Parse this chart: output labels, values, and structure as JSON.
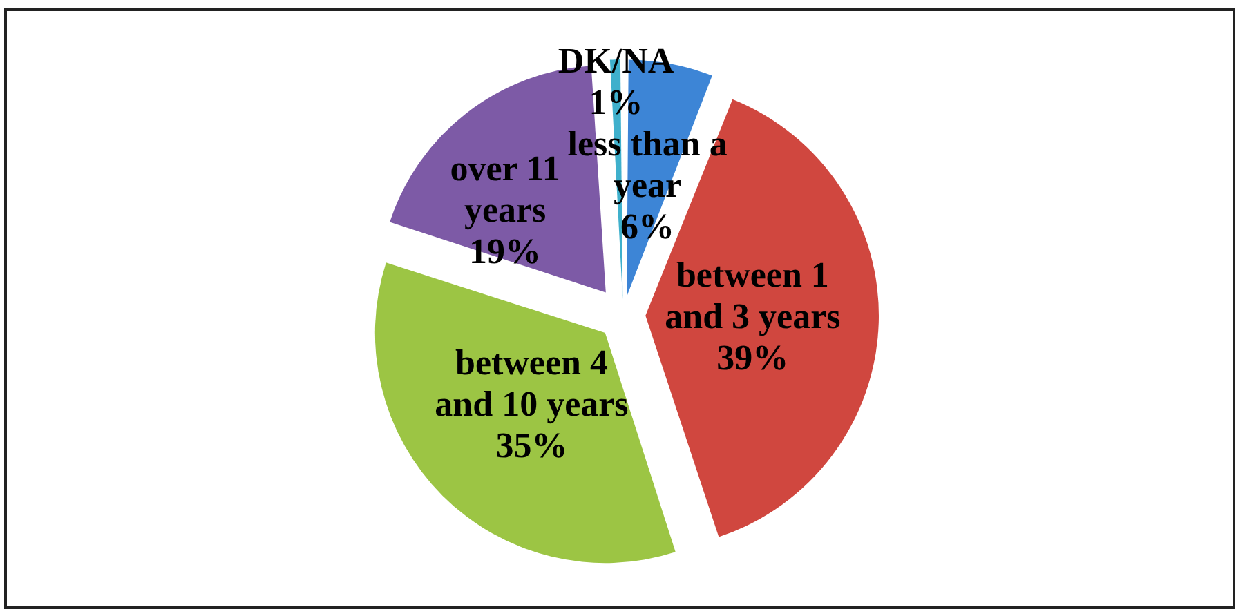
{
  "chart_data": {
    "type": "pie",
    "categories": [
      "less than a year",
      "between 1 and 3 years",
      "between 4 and 10 years",
      "over 11 years",
      "DK/NA"
    ],
    "values": [
      6,
      39,
      35,
      19,
      1
    ],
    "value_labels": [
      "6%",
      "39%",
      "35%",
      "19%",
      "1%"
    ],
    "colors": [
      "#3d85d6",
      "#d0473f",
      "#9cc544",
      "#7d5aa6",
      "#3fb0cc"
    ]
  }
}
